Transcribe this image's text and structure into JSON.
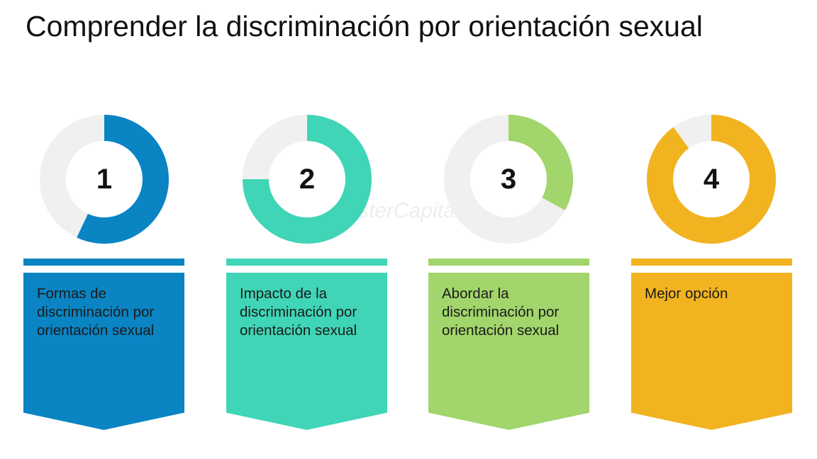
{
  "header": {
    "title": "Comprender la discriminación por orientación sexual"
  },
  "watermark": {
    "text": "FasterCapital"
  },
  "track_color": "#f0f0f0",
  "steps": [
    {
      "number": "1",
      "label": "Formas de discriminación por orientación sexual",
      "color": "#0a84c3",
      "fill_fraction": 0.57
    },
    {
      "number": "2",
      "label": "Impacto de la discriminación por orientación sexual",
      "color": "#3fd5b6",
      "fill_fraction": 0.75
    },
    {
      "number": "3",
      "label": "Abordar la discriminación por orientación sexual",
      "color": "#a2d56b",
      "fill_fraction": 0.33
    },
    {
      "number": "4",
      "label": "Mejor opción",
      "color": "#f2b320",
      "fill_fraction": 0.9
    }
  ]
}
